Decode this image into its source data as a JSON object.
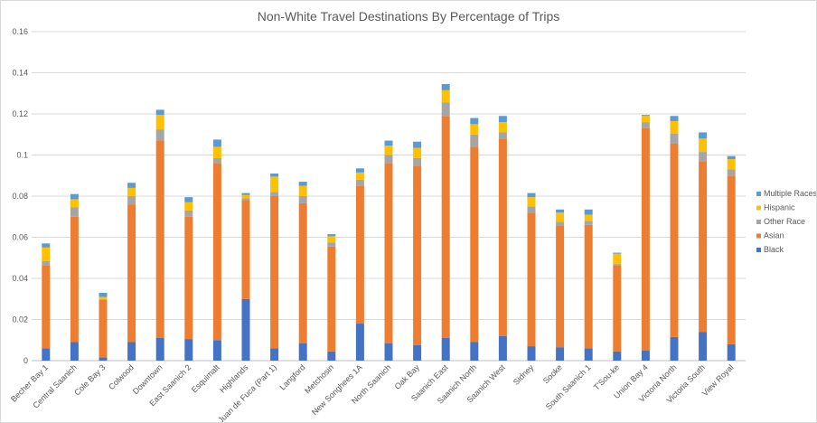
{
  "chart_data": {
    "type": "bar",
    "stacked": true,
    "title": "Non-White Travel Destinations By Percentage of Trips",
    "xlabel": "",
    "ylabel": "",
    "ylim": [
      0,
      0.16
    ],
    "yticks": [
      "0",
      "0.02",
      "0.04",
      "0.06",
      "0.08",
      "0.1",
      "0.12",
      "0.14",
      "0.16"
    ],
    "grid": true,
    "legend_position": "right",
    "categories": [
      "Becher Bay 1",
      "Central Saanich",
      "Cole Bay 3",
      "Colwood",
      "Downtown",
      "East Saanich 2",
      "Esquimalt",
      "Highlands",
      "Juan de Fuca (Part 1)",
      "Langford",
      "Metchosin",
      "New Songhees 1A",
      "North Saanich",
      "Oak Bay",
      "Saanich East",
      "Saanich North",
      "Saanich West",
      "Sidney",
      "Sooke",
      "South Saanich 1",
      "T'Sou-ke",
      "Union Bay 4",
      "Victoria North",
      "Victoria South",
      "View Royal"
    ],
    "series": [
      {
        "name": "Black",
        "color": "#4472c4",
        "values": [
          0.006,
          0.009,
          0.0015,
          0.009,
          0.011,
          0.0105,
          0.01,
          0.03,
          0.006,
          0.0085,
          0.0045,
          0.018,
          0.0085,
          0.0075,
          0.011,
          0.009,
          0.012,
          0.007,
          0.0065,
          0.006,
          0.0045,
          0.005,
          0.0115,
          0.014,
          0.008
        ]
      },
      {
        "name": "Asian",
        "color": "#ed7d31",
        "values": [
          0.0405,
          0.061,
          0.028,
          0.067,
          0.096,
          0.0595,
          0.086,
          0.048,
          0.074,
          0.068,
          0.051,
          0.067,
          0.0875,
          0.087,
          0.108,
          0.095,
          0.096,
          0.065,
          0.059,
          0.06,
          0.042,
          0.108,
          0.094,
          0.083,
          0.082
        ]
      },
      {
        "name": "Other Race",
        "color": "#a5a5a5",
        "values": [
          0.002,
          0.0045,
          0.0005,
          0.004,
          0.0055,
          0.003,
          0.0025,
          0.001,
          0.002,
          0.0035,
          0.002,
          0.003,
          0.004,
          0.004,
          0.0065,
          0.006,
          0.003,
          0.003,
          0.002,
          0.002,
          0.0005,
          0.003,
          0.005,
          0.0045,
          0.003
        ]
      },
      {
        "name": "Hispanic",
        "color": "#ffc000",
        "values": [
          0.0065,
          0.004,
          0.001,
          0.004,
          0.007,
          0.004,
          0.0055,
          0.0015,
          0.0075,
          0.005,
          0.003,
          0.0035,
          0.0045,
          0.005,
          0.006,
          0.005,
          0.005,
          0.0045,
          0.0045,
          0.003,
          0.005,
          0.003,
          0.006,
          0.0065,
          0.005
        ]
      },
      {
        "name": "Multiple Races",
        "color": "#5b9bd5",
        "values": [
          0.002,
          0.0025,
          0.002,
          0.0025,
          0.0025,
          0.0025,
          0.0035,
          0.001,
          0.0015,
          0.002,
          0.001,
          0.002,
          0.0025,
          0.003,
          0.003,
          0.003,
          0.003,
          0.002,
          0.0015,
          0.0025,
          0.0005,
          0.0005,
          0.0025,
          0.003,
          0.0015
        ]
      }
    ],
    "legend_order": [
      "Multiple Races",
      "Hispanic",
      "Other Race",
      "Asian",
      "Black"
    ]
  }
}
